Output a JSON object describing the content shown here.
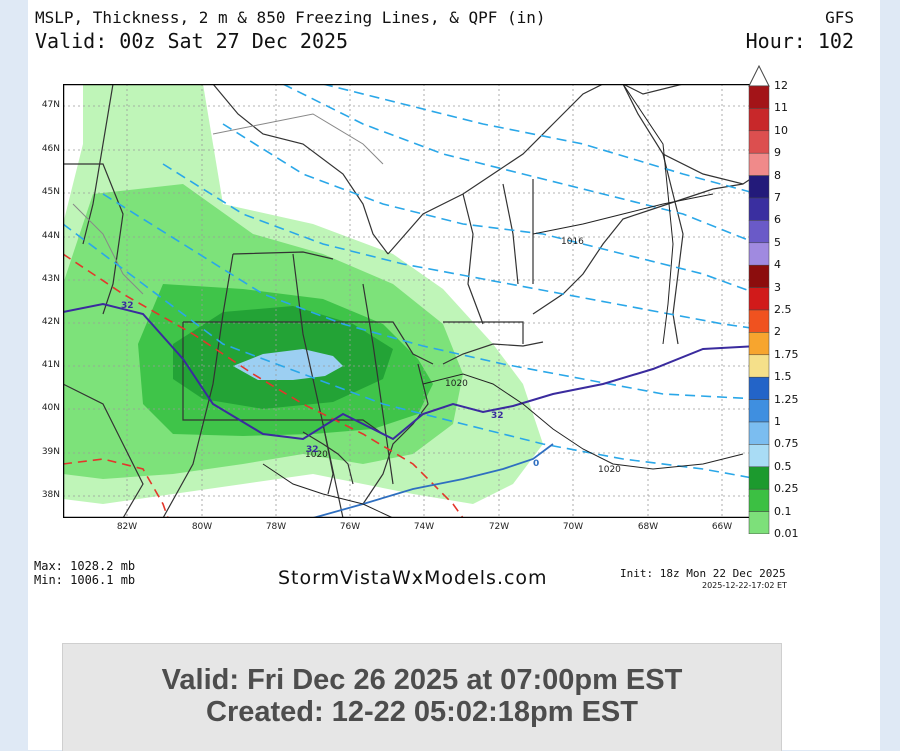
{
  "header": {
    "title": "MSLP, Thickness, 2 m & 850 Freezing Lines, & QPF (in)",
    "model": "GFS",
    "valid": "Valid: 00z Sat 27 Dec 2025",
    "hour": "Hour: 102"
  },
  "map": {
    "lat_labels": [
      "47N",
      "46N",
      "45N",
      "44N",
      "43N",
      "42N",
      "41N",
      "40N",
      "39N",
      "38N"
    ],
    "lon_labels": [
      "82W",
      "80W",
      "78W",
      "76W",
      "74W",
      "72W",
      "70W",
      "68W",
      "66W"
    ],
    "isobar_labels": [
      "1020",
      "1020",
      "1020",
      "1016"
    ],
    "freezing_labels": [
      "32",
      "32",
      "32",
      "0"
    ],
    "colors": {
      "qpf_light": "#bff5b8",
      "qpf_mid": "#7de27a",
      "qpf_heavy": "#3fc449",
      "qpf_dark": "#23a336",
      "qpf_blue": "#9ccff2",
      "thickness": "#2aa7e8",
      "line_850": "#e3362b",
      "line_2m": "#3a2b9e",
      "isobar": "#222222",
      "border": "#444444"
    }
  },
  "colorbar": {
    "labels": [
      "12",
      "11",
      "10",
      "9",
      "8",
      "7",
      "6",
      "5",
      "4",
      "3",
      "2.5",
      "2",
      "1.75",
      "1.5",
      "1.25",
      "1",
      "0.75",
      "0.5",
      "0.25",
      "0.1",
      "0.01"
    ],
    "colors": [
      "#a31418",
      "#c8282a",
      "#dc4f4f",
      "#f08a8a",
      "#231a7a",
      "#3a2fa0",
      "#6a5ac8",
      "#a08ae0",
      "#8c0d0d",
      "#d11a1a",
      "#f0521f",
      "#f7a52e",
      "#f5e08a",
      "#2364c8",
      "#3f8fe0",
      "#7bbdf0",
      "#a9dcf5",
      "#1c9a2e",
      "#3cc043",
      "#7de07a",
      "#c4f7bf"
    ]
  },
  "footer": {
    "max": "Max: 1028.2 mb",
    "min": "Min: 1006.1 mb",
    "site": "StormVistaWxModels.com",
    "init": "Init: 18z Mon 22 Dec 2025",
    "timestamp": "2025-12-22-17:02 ET"
  },
  "valid_box": {
    "line1": "Valid: Fri Dec 26 2025 at 07:00pm EST",
    "line2": "Created: 12-22 05:02:18pm EST"
  }
}
